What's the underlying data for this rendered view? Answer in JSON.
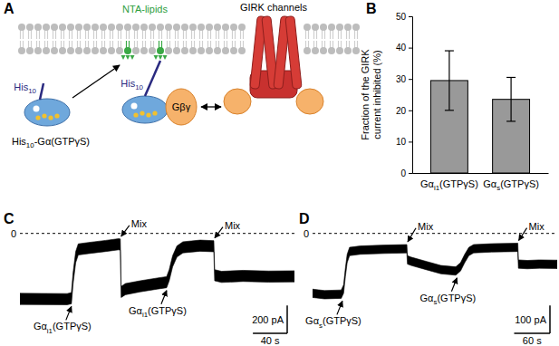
{
  "panel_labels": [
    "A",
    "B",
    "C",
    "D"
  ],
  "diagram": {
    "lipid_label": [
      "NTA-lipids"
    ],
    "tag_labels": [
      [
        "His",
        "10"
      ],
      [
        "His",
        "10"
      ]
    ],
    "protein_label": [
      "His",
      "10",
      "-Gα(GTPγS)"
    ],
    "gbg_label": [
      "Gβγ"
    ],
    "channel_label": [
      "GIRK channels"
    ]
  },
  "chart_data": [
    {
      "type": "bar",
      "y_label": [
        "Fraction of the GIRK",
        "current inhibited (%)"
      ],
      "categories": [
        [
          "Gα",
          "i1",
          "(GTPγS)"
        ],
        [
          "Gα",
          "s",
          "(GTPγS)"
        ]
      ],
      "values": [
        29.5,
        23.5
      ],
      "errors": [
        9.5,
        7
      ],
      "color": "#999999",
      "ylim": [
        0,
        50
      ],
      "yticks": [
        0,
        10,
        20,
        30,
        40,
        50
      ]
    },
    {
      "type": "line",
      "x": [
        0,
        55,
        60,
        62,
        65,
        68,
        80,
        100,
        115,
        117,
        118,
        123,
        140,
        160,
        171,
        174,
        178,
        183,
        190,
        210,
        226,
        227,
        235,
        260,
        290,
        320
      ],
      "values": [
        -470,
        -472,
        -465,
        -320,
        -170,
        -115,
        -105,
        -90,
        -78,
        -80,
        -420,
        -400,
        -380,
        -360,
        -350,
        -300,
        -200,
        -130,
        -100,
        -88,
        -92,
        -300,
        -312,
        -305,
        -310,
        -308
      ],
      "spread": 40,
      "color": "#000000",
      "xlim": [
        0,
        320
      ],
      "ylim": [
        -600,
        50
      ],
      "tick_labels": false,
      "reference_line": 0,
      "scale_bars": {
        "x": {
          "value": 40,
          "label": "40 s"
        },
        "y": {
          "value": 200,
          "label": "200 pA"
        }
      },
      "annotations": {
        "additions": [
          {
            "label": [
              "Gα",
              "i1",
              "(GTPγS)"
            ],
            "x": 60
          },
          {
            "label": [
              "Gα",
              "i1",
              "(GTPγS)"
            ],
            "x": 171
          }
        ],
        "mixes": [
          {
            "label": [
              "Mix"
            ],
            "x": 117
          },
          {
            "label": [
              "Mix"
            ],
            "x": 226
          }
        ]
      }
    },
    {
      "type": "line",
      "x": [
        0,
        20,
        48,
        52,
        55,
        58,
        62,
        80,
        120,
        158,
        159,
        165,
        190,
        215,
        240,
        248,
        255,
        262,
        270,
        300,
        344,
        345,
        360,
        380,
        410
      ],
      "values": [
        -215,
        -220,
        -218,
        -200,
        -140,
        -90,
        -65,
        -60,
        -57,
        -55,
        -95,
        -100,
        -115,
        -130,
        -135,
        -120,
        -90,
        -65,
        -55,
        -52,
        -50,
        -110,
        -112,
        -110,
        -111
      ],
      "spread": 15,
      "color": "#000000",
      "xlim": [
        0,
        410
      ],
      "ylim": [
        -300,
        25
      ],
      "tick_labels": false,
      "reference_line": 0,
      "scale_bars": {
        "x": {
          "value": 60,
          "label": "60 s"
        },
        "y": {
          "value": 100,
          "label": "100 pA"
        }
      },
      "annotations": {
        "additions": [
          {
            "label": [
              "Gα",
              "s",
              "(GTPγS)"
            ],
            "x": 50
          },
          {
            "label": [
              "Gα",
              "s",
              "(GTPγS)"
            ],
            "x": 242
          }
        ],
        "mixes": [
          {
            "label": [
              "Mix"
            ],
            "x": 158
          },
          {
            "label": [
              "Mix"
            ],
            "x": 344
          }
        ]
      }
    }
  ]
}
